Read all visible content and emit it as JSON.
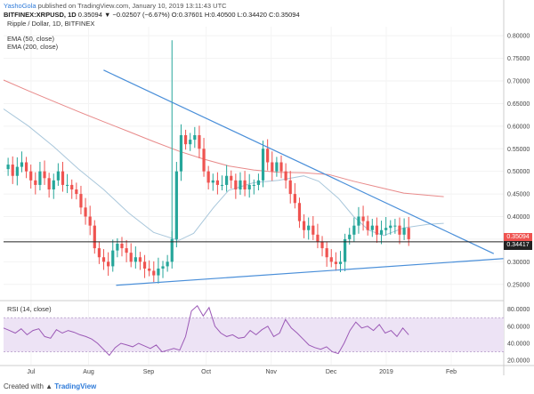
{
  "header": {
    "author": "YashoGola",
    "published_text": " published on TradingView.com, January 10, 2019 13:11:43 UTC",
    "symbol": "BITFINEX:XRPUSD, 1D",
    "price_info": " 0.35094  ▼ −0.02507 (−6.67%)  O:0.37601  H:0.40500  L:0.34420  C:0.35094",
    "title": "Ripple / Dollar, 1D, BITFINEX",
    "ema50_label": "EMA (50, close)",
    "ema200_label": "EMA (200, close)"
  },
  "price_tags": {
    "current": "0.35094",
    "line": "0.34417"
  },
  "rsi_label": "RSI (14, close)",
  "footer": {
    "prefix": "Created with ",
    "brand": "TradingView"
  },
  "colors": {
    "up": "#26a69a",
    "down": "#ef5350",
    "ema50": "#a9c7db",
    "ema200": "#e88a8a",
    "trend": "#4a8fd9",
    "rsi": "#9b59b6",
    "rsi_band": "#ede3f5",
    "hline": "#222222"
  },
  "chart_data": {
    "type": "candlestick",
    "title": "Ripple / Dollar, 1D, BITFINEX",
    "y_ticks": [
      "0.80000",
      "0.75000",
      "0.70000",
      "0.65000",
      "0.60000",
      "0.55000",
      "0.50000",
      "0.45000",
      "0.40000",
      "0.35000",
      "0.30000",
      "0.25000"
    ],
    "ylim": [
      0.22,
      0.82
    ],
    "x_ticks": [
      "Jul",
      "Aug",
      "Sep",
      "Oct",
      "Nov",
      "Dec",
      "2019",
      "Feb"
    ],
    "rsi_ticks": [
      "80.0000",
      "60.0000",
      "40.0000",
      "20.0000"
    ],
    "rsi_ylim": [
      15,
      88
    ],
    "horizontal_level": 0.34417,
    "trendline_upper": [
      [
        0.73,
        0.724
      ],
      [
        0.98,
        0.318
      ]
    ],
    "trendline_lower": [
      [
        0.225,
        0.248
      ],
      [
        1.0,
        0.307
      ]
    ],
    "ema200": [
      [
        0,
        0.702
      ],
      [
        0.05,
        0.678
      ],
      [
        0.1,
        0.655
      ],
      [
        0.15,
        0.632
      ],
      [
        0.2,
        0.61
      ],
      [
        0.25,
        0.588
      ],
      [
        0.3,
        0.566
      ],
      [
        0.35,
        0.545
      ],
      [
        0.4,
        0.527
      ],
      [
        0.45,
        0.512
      ],
      [
        0.5,
        0.503
      ],
      [
        0.55,
        0.498
      ],
      [
        0.6,
        0.497
      ],
      [
        0.65,
        0.493
      ],
      [
        0.7,
        0.478
      ],
      [
        0.75,
        0.465
      ],
      [
        0.8,
        0.452
      ],
      [
        0.85,
        0.447
      ],
      [
        0.88,
        0.444
      ]
    ],
    "ema50": [
      [
        0,
        0.638
      ],
      [
        0.05,
        0.6
      ],
      [
        0.1,
        0.555
      ],
      [
        0.15,
        0.505
      ],
      [
        0.2,
        0.46
      ],
      [
        0.25,
        0.408
      ],
      [
        0.3,
        0.365
      ],
      [
        0.35,
        0.347
      ],
      [
        0.38,
        0.363
      ],
      [
        0.42,
        0.42
      ],
      [
        0.45,
        0.458
      ],
      [
        0.5,
        0.475
      ],
      [
        0.55,
        0.48
      ],
      [
        0.6,
        0.49
      ],
      [
        0.63,
        0.478
      ],
      [
        0.67,
        0.44
      ],
      [
        0.7,
        0.4
      ],
      [
        0.73,
        0.37
      ],
      [
        0.76,
        0.358
      ],
      [
        0.8,
        0.375
      ],
      [
        0.85,
        0.383
      ],
      [
        0.88,
        0.385
      ]
    ],
    "price_path": [
      0.505,
      0.515,
      0.49,
      0.51,
      0.52,
      0.5,
      0.48,
      0.47,
      0.5,
      0.485,
      0.46,
      0.48,
      0.5,
      0.47,
      0.47,
      0.46,
      0.45,
      0.42,
      0.4,
      0.38,
      0.33,
      0.31,
      0.3,
      0.29,
      0.325,
      0.34,
      0.33,
      0.32,
      0.3,
      0.31,
      0.3,
      0.285,
      0.28,
      0.27,
      0.285,
      0.29,
      0.3,
      0.35,
      0.5,
      0.58,
      0.56,
      0.57,
      0.58,
      0.55,
      0.5,
      0.475,
      0.48,
      0.47,
      0.47,
      0.49,
      0.48,
      0.46,
      0.48,
      0.46,
      0.47,
      0.47,
      0.48,
      0.55,
      0.52,
      0.5,
      0.52,
      0.5,
      0.48,
      0.45,
      0.43,
      0.39,
      0.37,
      0.38,
      0.36,
      0.345,
      0.33,
      0.31,
      0.3,
      0.295,
      0.3,
      0.35,
      0.36,
      0.38,
      0.4,
      0.39,
      0.37,
      0.38,
      0.36,
      0.37,
      0.375,
      0.38,
      0.38,
      0.36,
      0.375,
      0.35
    ],
    "rsi": [
      58,
      55,
      52,
      57,
      50,
      55,
      57,
      48,
      46,
      56,
      52,
      55,
      53,
      50,
      48,
      45,
      40,
      33,
      26,
      35,
      40,
      38,
      36,
      40,
      37,
      34,
      38,
      30,
      32,
      34,
      32,
      48,
      78,
      84,
      72,
      82,
      60,
      52,
      48,
      50,
      46,
      47,
      55,
      50,
      56,
      60,
      48,
      52,
      68,
      58,
      52,
      45,
      38,
      35,
      33,
      36,
      30,
      28,
      40,
      55,
      65,
      58,
      60,
      55,
      62,
      52,
      55,
      48,
      58,
      50
    ],
    "rsi_band": [
      30,
      70
    ]
  }
}
